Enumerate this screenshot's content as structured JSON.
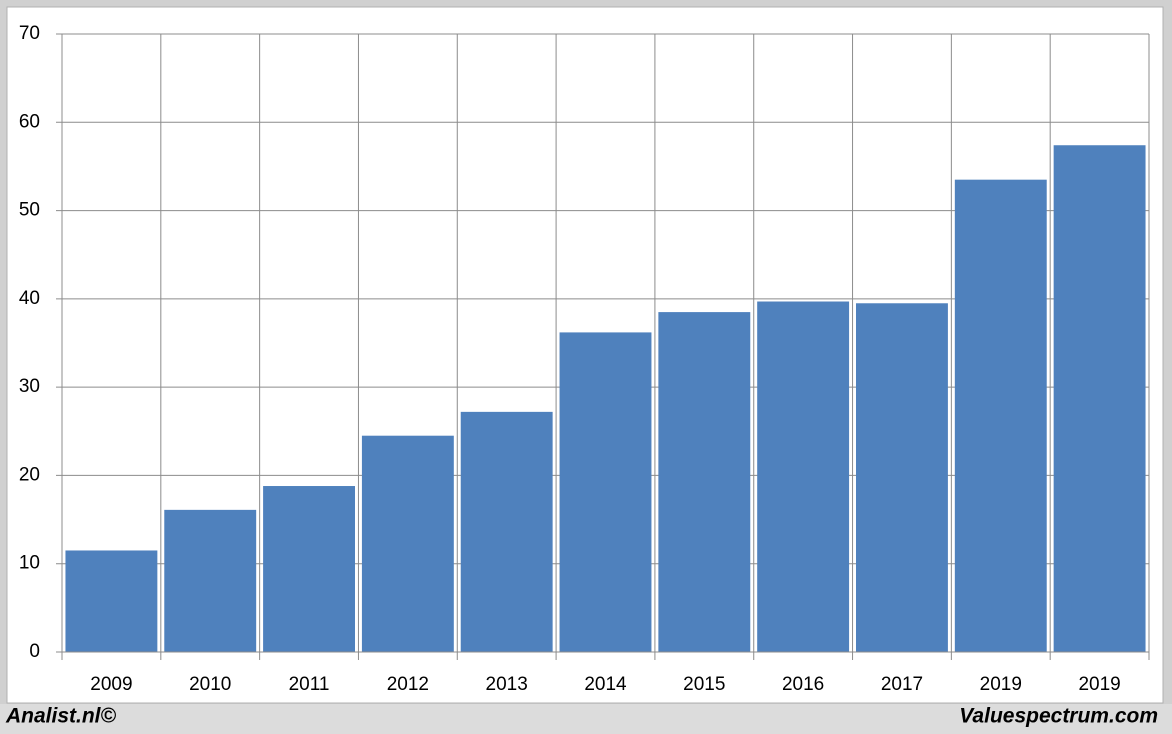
{
  "chart_data": {
    "type": "bar",
    "categories": [
      "2009",
      "2010",
      "2011",
      "2012",
      "2013",
      "2014",
      "2015",
      "2016",
      "2017",
      "2019",
      "2019"
    ],
    "values": [
      11.5,
      16.1,
      18.8,
      24.5,
      27.2,
      36.2,
      38.5,
      39.7,
      39.5,
      53.5,
      57.4
    ],
    "color": "#4f81bd",
    "ylim": [
      0,
      70
    ],
    "yticks": [
      0,
      10,
      20,
      30,
      40,
      50,
      60,
      70
    ],
    "grid": true,
    "credits": [
      "Analist.nl©",
      "Valuespectrum.com"
    ]
  }
}
